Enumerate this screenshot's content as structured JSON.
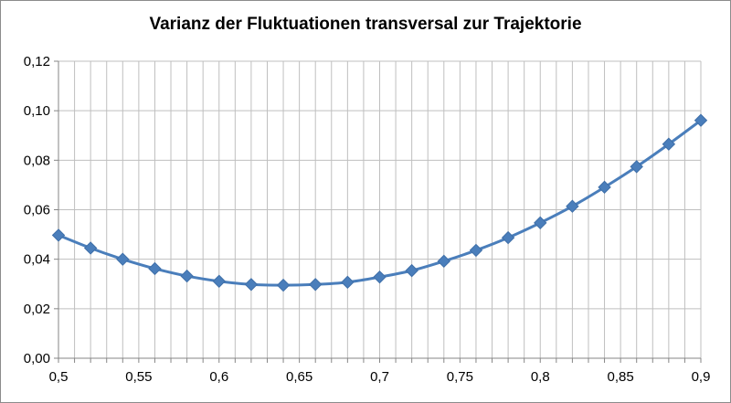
{
  "chart_data": {
    "type": "line",
    "title": "Varianz der Fluktuationen transversal zur Trajektorie",
    "xlabel": "",
    "ylabel": "",
    "xlim": [
      0.5,
      0.9
    ],
    "ylim": [
      0.0,
      0.12
    ],
    "x_ticks": [
      0.5,
      0.55,
      0.6,
      0.65,
      0.7,
      0.75,
      0.8,
      0.85,
      0.9
    ],
    "x_tick_labels": [
      "0,5",
      "0,55",
      "0,6",
      "0,65",
      "0,7",
      "0,75",
      "0,8",
      "0,85",
      "0,9"
    ],
    "y_ticks": [
      0.0,
      0.02,
      0.04,
      0.06,
      0.08,
      0.1,
      0.12
    ],
    "y_tick_labels": [
      "0,00",
      "0,02",
      "0,04",
      "0,06",
      "0,08",
      "0,10",
      "0,12"
    ],
    "grid": {
      "horizontal": true,
      "vertical_minor_step": 0.01
    },
    "legend": "none",
    "series": [
      {
        "color": "#4a7ebb",
        "marker": "diamond",
        "x": [
          0.5,
          0.52,
          0.54,
          0.56,
          0.58,
          0.6,
          0.62,
          0.64,
          0.66,
          0.68,
          0.7,
          0.72,
          0.74,
          0.76,
          0.78,
          0.8,
          0.82,
          0.84,
          0.86,
          0.88,
          0.9
        ],
        "y": [
          0.0497,
          0.0445,
          0.04,
          0.0362,
          0.0332,
          0.0311,
          0.0298,
          0.0295,
          0.0298,
          0.0307,
          0.0328,
          0.0354,
          0.0392,
          0.0436,
          0.0487,
          0.0547,
          0.0614,
          0.0691,
          0.0774,
          0.0865,
          0.0961
        ]
      }
    ]
  }
}
